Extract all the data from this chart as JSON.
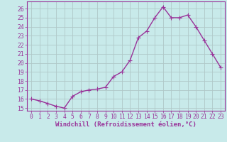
{
  "x": [
    0,
    1,
    2,
    3,
    4,
    5,
    6,
    7,
    8,
    9,
    10,
    11,
    12,
    13,
    14,
    15,
    16,
    17,
    18,
    19,
    20,
    21,
    22,
    23
  ],
  "y": [
    16.0,
    15.8,
    15.5,
    15.2,
    15.0,
    16.3,
    16.8,
    17.0,
    17.1,
    17.3,
    18.5,
    19.0,
    20.3,
    22.8,
    23.5,
    25.0,
    26.2,
    25.0,
    25.0,
    25.3,
    24.0,
    22.5,
    21.0,
    19.5
  ],
  "line_color": "#993399",
  "marker_color": "#993399",
  "bg_color": "#c8eaea",
  "grid_color": "#b0c8c8",
  "axis_color": "#993399",
  "spine_color": "#993399",
  "xlabel": "Windchill (Refroidissement éolien,°C)",
  "ylim_min": 14.7,
  "ylim_max": 26.8,
  "xlim_min": -0.5,
  "xlim_max": 23.5,
  "yticks": [
    15,
    16,
    17,
    18,
    19,
    20,
    21,
    22,
    23,
    24,
    25,
    26
  ],
  "xticks": [
    0,
    1,
    2,
    3,
    4,
    5,
    6,
    7,
    8,
    9,
    10,
    11,
    12,
    13,
    14,
    15,
    16,
    17,
    18,
    19,
    20,
    21,
    22,
    23
  ],
  "font_size": 5.8,
  "xlabel_fontsize": 6.5,
  "marker_size": 2.5,
  "line_width": 1.0
}
